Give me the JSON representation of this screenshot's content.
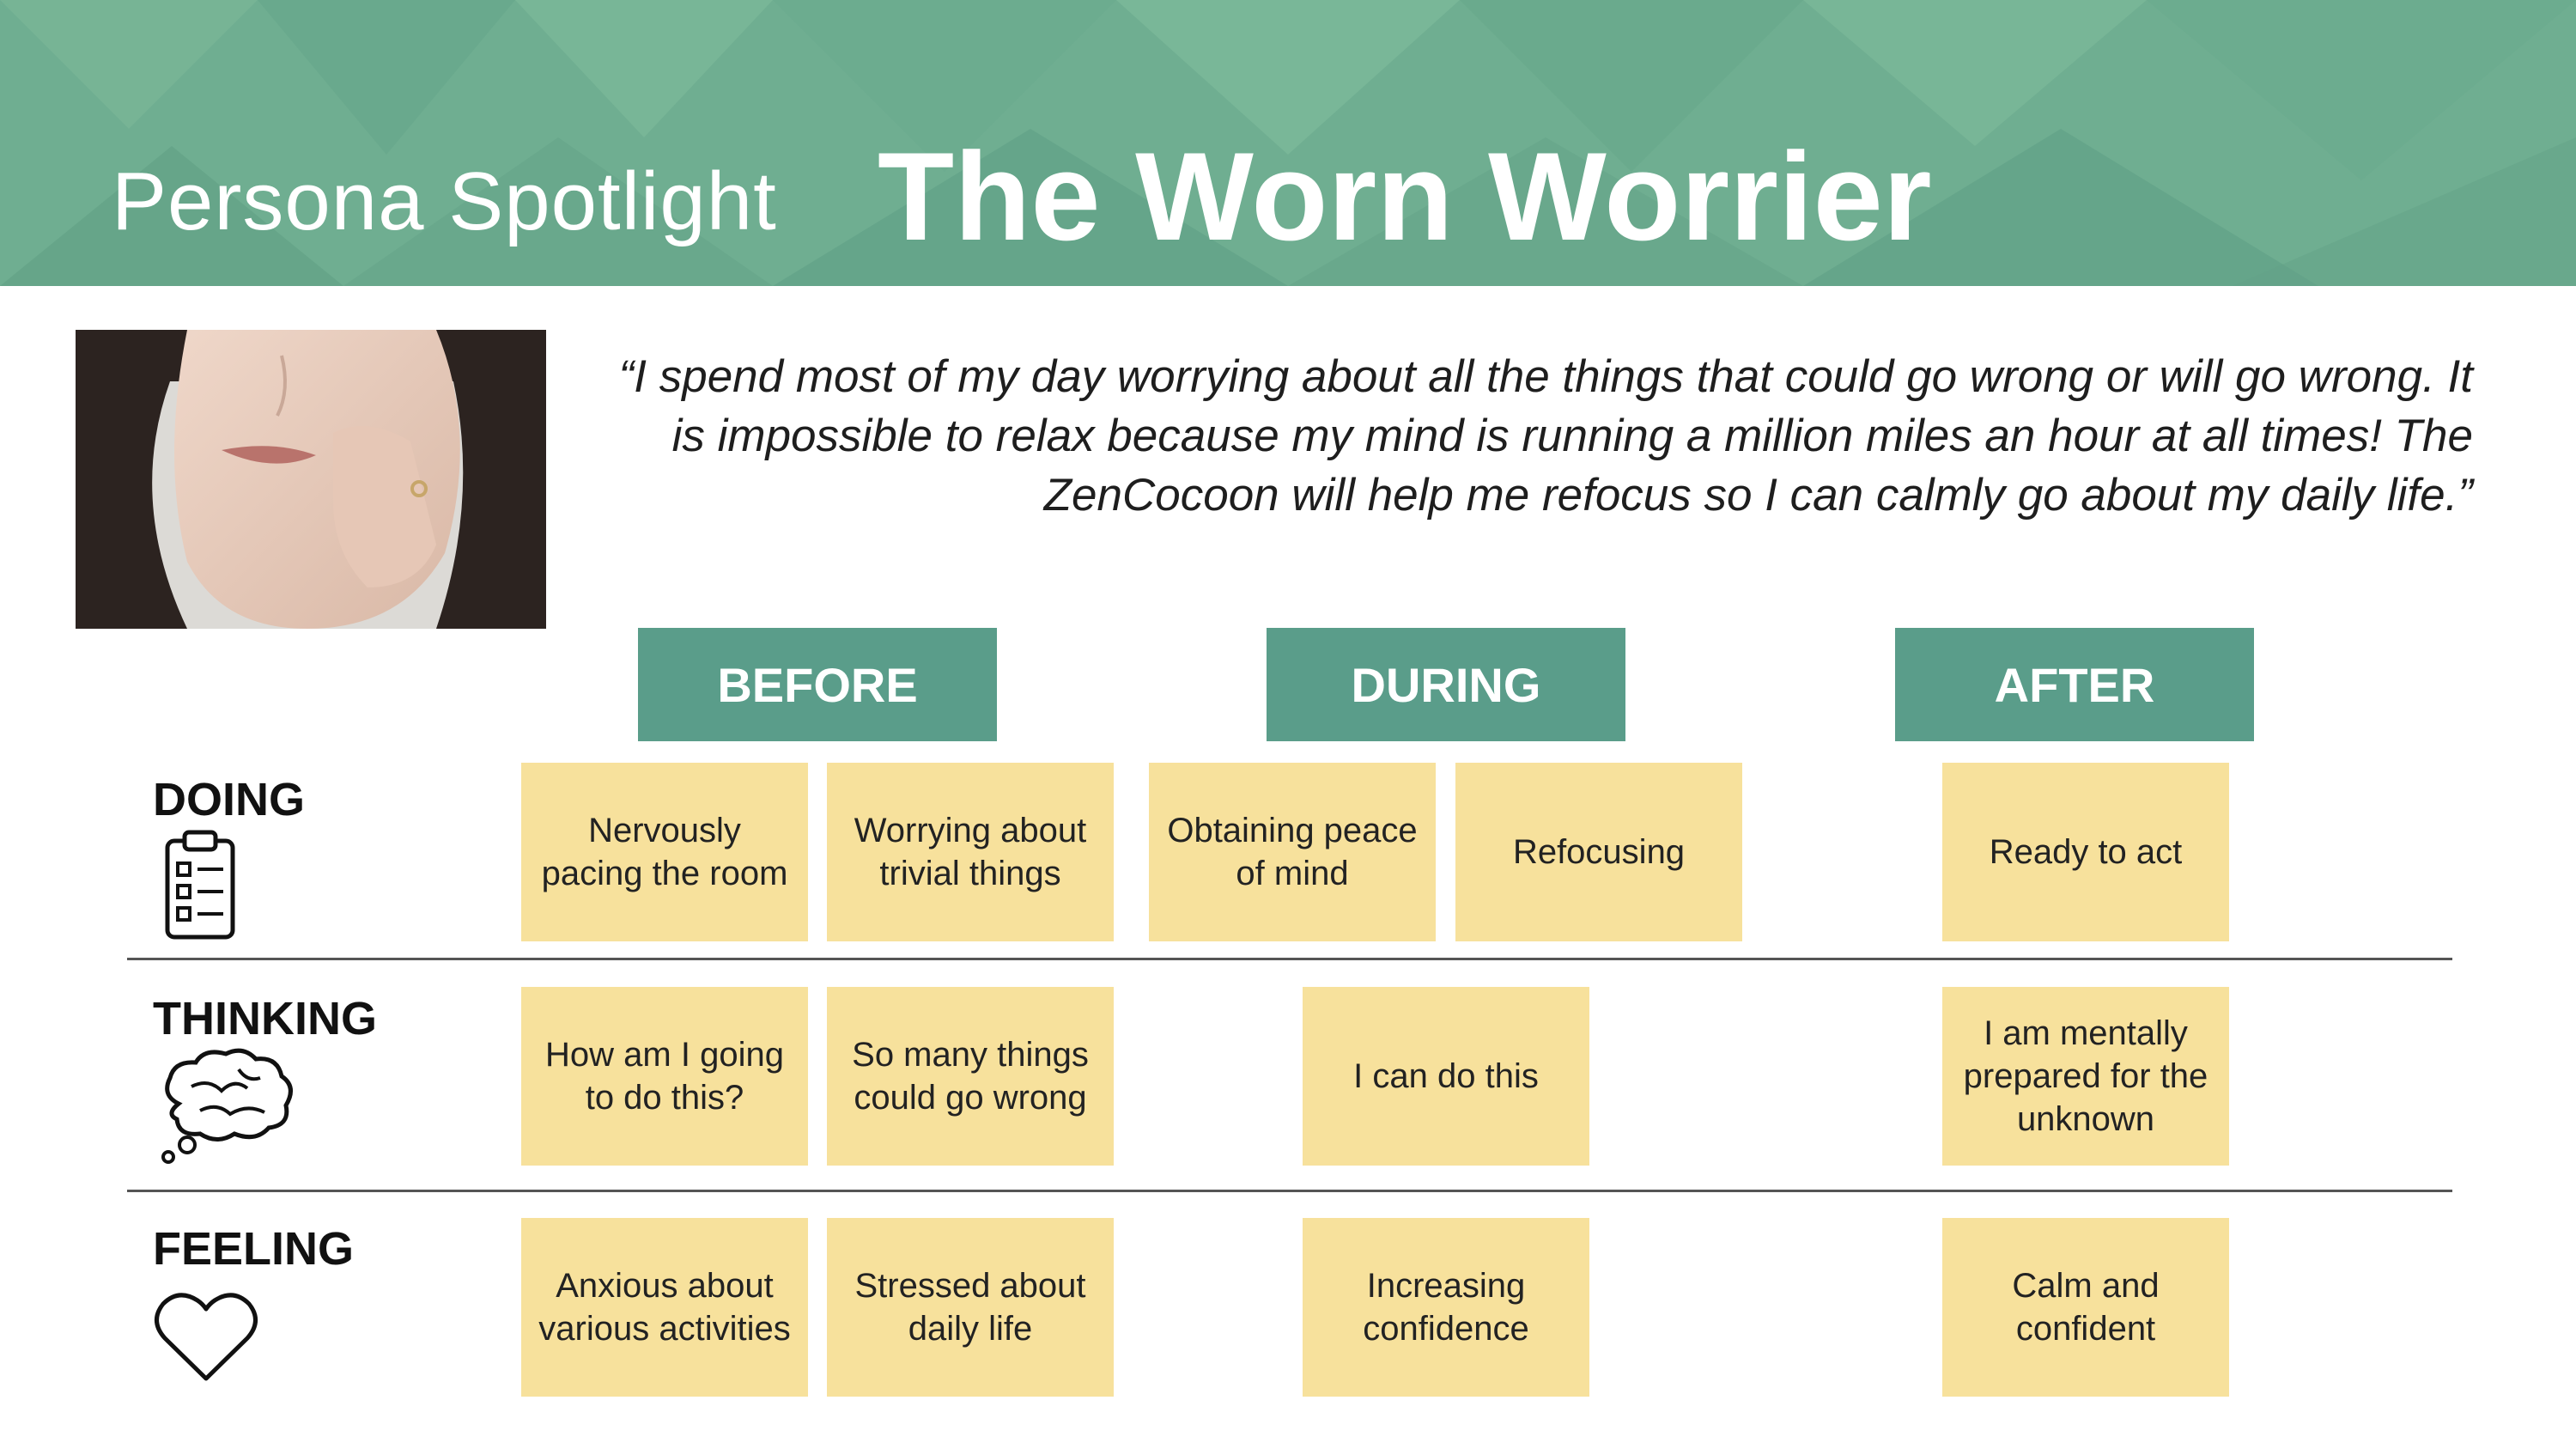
{
  "header": {
    "subtitle": "Persona Spotlight",
    "title": "The Worn Worrier"
  },
  "quote": "“I spend most of my day worrying about all the things that could go wrong or will go wrong. It is impossible to relax because my mind is running a million miles an hour at all times! The ZenCocoon will help me refocus so I can calmly go about my daily life.”",
  "phases": [
    "BEFORE",
    "DURING",
    "AFTER"
  ],
  "rows": [
    {
      "label": "DOING",
      "icon": "clipboard-checklist-icon",
      "notes": [
        "Nervously pacing the room",
        "Worrying about trivial things",
        "Obtaining peace of mind",
        "Refocusing",
        "Ready to act"
      ]
    },
    {
      "label": "THINKING",
      "icon": "brain-thought-icon",
      "notes": [
        "How am I going to do this?",
        "So many things could go wrong",
        "I can do this",
        "I am mentally prepared for the unknown"
      ]
    },
    {
      "label": "FEELING",
      "icon": "heart-icon",
      "notes": [
        "Anxious about various activities",
        "Stressed about daily life",
        "Increasing confidence",
        "Calm and confident"
      ]
    }
  ],
  "colors": {
    "banner": "#6fae91",
    "phase_box": "#5a9d8a",
    "sticky_note": "#f7e19c"
  }
}
